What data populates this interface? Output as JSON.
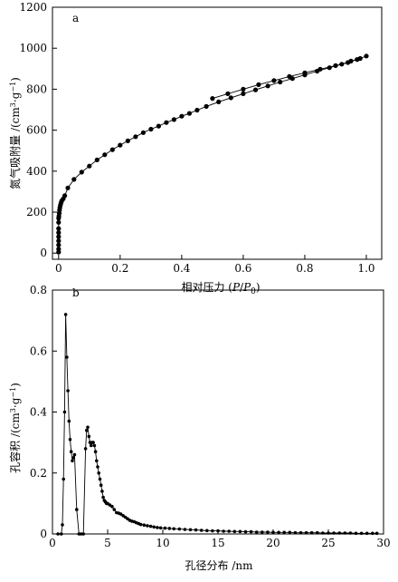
{
  "chart_data": [
    {
      "type": "line",
      "panel_label": "a",
      "xlabel": "相对压力 (P/P0)",
      "xlabel_parts": {
        "prefix": "相对压力 (",
        "p": "P",
        "slash": "/",
        "p0": "P",
        "sub": "0",
        "suffix": ")"
      },
      "ylabel": "氮气吸附量 /(cm3·g−1)",
      "ylabel_parts": {
        "main": "氮气吸附量 /(cm",
        "sup1": "3",
        "mid": "·g",
        "sup2": "−1",
        "end": ")"
      },
      "xlim": [
        -0.02,
        1.05
      ],
      "ylim": [
        -30,
        1200
      ],
      "xticks": [
        0,
        0.2,
        0.4,
        0.6,
        0.8,
        1.0
      ],
      "xtick_labels": [
        "0",
        "0.2",
        "0.4",
        "0.6",
        "0.8",
        "1.0"
      ],
      "yticks": [
        0,
        200,
        400,
        600,
        800,
        1000,
        1200
      ],
      "ytick_labels": [
        "0",
        "200",
        "400",
        "600",
        "800",
        "1000",
        "1200"
      ],
      "grid": false,
      "legend": "none",
      "series": [
        {
          "marker": "circle",
          "x": [
            0.0,
            0.0,
            0.0,
            0.0,
            0.0,
            0.0,
            0.0,
            0.0,
            0.0,
            0.001,
            0.002,
            0.003,
            0.004,
            0.006,
            0.008,
            0.01,
            0.015,
            0.02,
            0.03,
            0.05,
            0.075,
            0.1,
            0.125,
            0.15,
            0.175,
            0.2,
            0.225,
            0.25,
            0.275,
            0.3,
            0.325,
            0.35,
            0.375,
            0.4,
            0.425,
            0.45,
            0.48,
            0.52,
            0.56,
            0.6,
            0.64,
            0.68,
            0.72,
            0.76,
            0.8,
            0.84,
            0.88,
            0.92,
            0.95,
            0.98,
            1.0
          ],
          "y": [
            5,
            20,
            40,
            60,
            80,
            100,
            120,
            150,
            170,
            180,
            195,
            210,
            222,
            235,
            245,
            255,
            265,
            280,
            318,
            360,
            395,
            425,
            455,
            480,
            505,
            527,
            548,
            568,
            588,
            605,
            620,
            637,
            652,
            668,
            682,
            698,
            716,
            738,
            758,
            778,
            797,
            816,
            835,
            852,
            870,
            888,
            905,
            922,
            937,
            950,
            962
          ]
        },
        {
          "marker": "circle",
          "x": [
            0.5,
            0.55,
            0.6,
            0.65,
            0.7,
            0.75,
            0.8,
            0.85,
            0.9,
            0.94,
            0.97
          ],
          "y": [
            755,
            778,
            800,
            822,
            842,
            862,
            880,
            898,
            915,
            930,
            945
          ]
        }
      ]
    },
    {
      "type": "line",
      "panel_label": "b",
      "xlabel": "孔径分布 /nm",
      "ylabel": "孔容积 /(cm3·g−1)",
      "ylabel_parts": {
        "main": "孔容积 /(cm",
        "sup1": "3",
        "mid": "·g",
        "sup2": "−1",
        "end": ")"
      },
      "xlim": [
        0,
        30
      ],
      "ylim": [
        0,
        0.8
      ],
      "xticks": [
        0,
        5,
        10,
        15,
        20,
        25,
        30
      ],
      "xtick_labels": [
        "0",
        "5",
        "10",
        "15",
        "20",
        "25",
        "30"
      ],
      "yticks": [
        0,
        0.2,
        0.4,
        0.6,
        0.8
      ],
      "ytick_labels": [
        "0",
        "0.2",
        "0.4",
        "0.6",
        "0.8"
      ],
      "grid": false,
      "legend": "none",
      "series": [
        {
          "marker": "circle",
          "x": [
            0.5,
            0.8,
            0.9,
            1.0,
            1.1,
            1.2,
            1.3,
            1.4,
            1.5,
            1.6,
            1.7,
            1.8,
            1.9,
            2.0,
            2.2,
            2.4,
            2.6,
            2.8,
            3.0,
            3.1,
            3.2,
            3.3,
            3.4,
            3.5,
            3.6,
            3.7,
            3.8,
            3.9,
            4.0,
            4.1,
            4.2,
            4.3,
            4.4,
            4.5,
            4.6,
            4.7,
            4.8,
            4.9,
            5.0,
            5.2,
            5.4,
            5.6,
            5.8,
            6.0,
            6.2,
            6.4,
            6.6,
            6.8,
            7.0,
            7.2,
            7.4,
            7.6,
            7.8,
            8.0,
            8.3,
            8.6,
            8.9,
            9.2,
            9.5,
            9.8,
            10.2,
            10.6,
            11.0,
            11.5,
            12.0,
            12.5,
            13.0,
            13.5,
            14.0,
            14.5,
            15.0,
            15.5,
            16.0,
            16.5,
            17.0,
            17.5,
            18.0,
            18.5,
            19.0,
            19.5,
            20.0,
            20.5,
            21.0,
            21.5,
            22.0,
            22.5,
            23.0,
            23.5,
            24.0,
            24.5,
            25.0,
            25.5,
            26.0,
            26.5,
            27.0,
            27.5,
            28.0,
            28.5,
            29.0,
            29.4
          ],
          "y": [
            0.0,
            0.0,
            0.03,
            0.18,
            0.4,
            0.72,
            0.58,
            0.47,
            0.37,
            0.31,
            0.27,
            0.24,
            0.25,
            0.26,
            0.08,
            0.0,
            0.0,
            0.0,
            0.28,
            0.34,
            0.35,
            0.32,
            0.3,
            0.29,
            0.3,
            0.3,
            0.29,
            0.27,
            0.24,
            0.22,
            0.2,
            0.18,
            0.16,
            0.14,
            0.12,
            0.11,
            0.105,
            0.1,
            0.1,
            0.095,
            0.09,
            0.08,
            0.07,
            0.068,
            0.065,
            0.06,
            0.055,
            0.05,
            0.045,
            0.042,
            0.04,
            0.037,
            0.034,
            0.031,
            0.029,
            0.027,
            0.025,
            0.023,
            0.021,
            0.02,
            0.019,
            0.018,
            0.017,
            0.016,
            0.015,
            0.014,
            0.013,
            0.012,
            0.011,
            0.01,
            0.01,
            0.009,
            0.009,
            0.008,
            0.008,
            0.007,
            0.007,
            0.006,
            0.006,
            0.006,
            0.005,
            0.005,
            0.005,
            0.005,
            0.004,
            0.004,
            0.004,
            0.004,
            0.004,
            0.003,
            0.003,
            0.003,
            0.003,
            0.003,
            0.003,
            0.002,
            0.002,
            0.002,
            0.002,
            0.002
          ]
        }
      ]
    }
  ]
}
